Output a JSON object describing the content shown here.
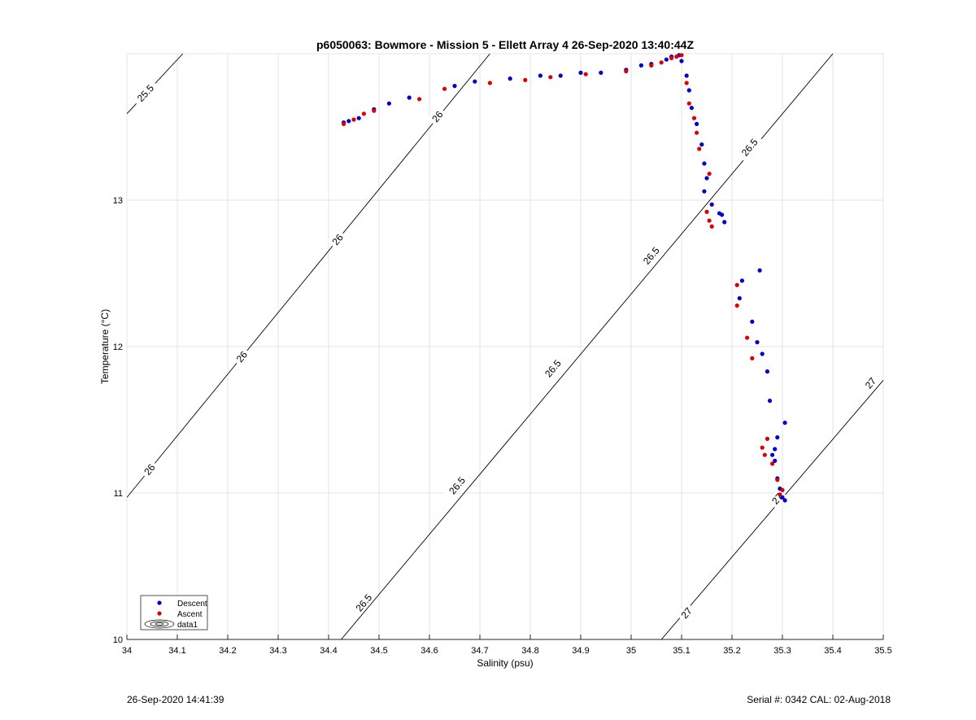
{
  "footer": {
    "left": "26-Sep-2020 14:41:39",
    "right": "Serial #: 0342  CAL: 02-Aug-2018"
  },
  "chart_data": {
    "type": "scatter",
    "title": "p6050063: Bowmore - Mission 5 - Ellett Array 4 26-Sep-2020 13:40:44Z",
    "xlabel": "Salinity (psu)",
    "ylabel": "Temperature (°C)",
    "xlim": [
      34,
      35.5
    ],
    "ylim": [
      10,
      14
    ],
    "xticks": [
      "34",
      "34.1",
      "34.2",
      "34.3",
      "34.4",
      "34.5",
      "34.6",
      "34.7",
      "34.8",
      "34.9",
      "35",
      "35.1",
      "35.2",
      "35.3",
      "35.4",
      "35.5"
    ],
    "yticks": [
      "10",
      "11",
      "12",
      "13"
    ],
    "grid": true,
    "legend": {
      "position": "bottom-left",
      "entries": [
        "Descent",
        "Ascent",
        "data1"
      ]
    },
    "colors": {
      "descent": "#0000cc",
      "ascent": "#dd0000",
      "contour": "#000000"
    },
    "density_contours": [
      {
        "level": "25.5",
        "line": [
          [
            34.0,
            13.59
          ],
          [
            34.111,
            14.0
          ]
        ],
        "labels": [
          {
            "text": "25.5",
            "x": 34.037,
            "y": 13.73
          }
        ]
      },
      {
        "level": "26",
        "line": [
          [
            34.0,
            10.97
          ],
          [
            34.72,
            14.0
          ]
        ],
        "labels": [
          {
            "text": "26",
            "x": 34.045,
            "y": 11.16
          },
          {
            "text": "26",
            "x": 34.228,
            "y": 11.93
          },
          {
            "text": "26",
            "x": 34.418,
            "y": 12.73
          },
          {
            "text": "26",
            "x": 34.616,
            "y": 13.57
          }
        ]
      },
      {
        "level": "26.5",
        "line": [
          [
            34.425,
            10.0
          ],
          [
            35.4,
            14.0
          ]
        ],
        "labels": [
          {
            "text": "26.5",
            "x": 34.47,
            "y": 10.25
          },
          {
            "text": "26.5",
            "x": 34.655,
            "y": 11.05
          },
          {
            "text": "26.5",
            "x": 34.845,
            "y": 11.85
          },
          {
            "text": "26.5",
            "x": 35.04,
            "y": 12.62
          },
          {
            "text": "26.5",
            "x": 35.235,
            "y": 13.36
          }
        ]
      },
      {
        "level": "27",
        "line": [
          [
            35.06,
            10.0
          ],
          [
            35.5,
            11.77
          ]
        ],
        "labels": [
          {
            "text": "27",
            "x": 35.11,
            "y": 10.18
          },
          {
            "text": "27",
            "x": 35.29,
            "y": 10.96
          },
          {
            "text": "27",
            "x": 35.475,
            "y": 11.75
          }
        ]
      }
    ],
    "series": [
      {
        "name": "Descent",
        "points": [
          [
            34.43,
            13.53
          ],
          [
            34.44,
            13.54
          ],
          [
            34.46,
            13.56
          ],
          [
            34.49,
            13.62
          ],
          [
            34.52,
            13.66
          ],
          [
            34.56,
            13.7
          ],
          [
            34.65,
            13.78
          ],
          [
            34.69,
            13.81
          ],
          [
            34.76,
            13.83
          ],
          [
            34.82,
            13.85
          ],
          [
            34.86,
            13.85
          ],
          [
            34.9,
            13.87
          ],
          [
            34.94,
            13.87
          ],
          [
            34.99,
            13.89
          ],
          [
            35.02,
            13.92
          ],
          [
            35.04,
            13.93
          ],
          [
            35.07,
            13.96
          ],
          [
            35.08,
            13.98
          ],
          [
            35.095,
            13.99
          ],
          [
            35.1,
            13.95
          ],
          [
            35.11,
            13.85
          ],
          [
            35.115,
            13.75
          ],
          [
            35.12,
            13.63
          ],
          [
            35.13,
            13.52
          ],
          [
            35.14,
            13.38
          ],
          [
            35.145,
            13.25
          ],
          [
            35.15,
            13.15
          ],
          [
            35.145,
            13.06
          ],
          [
            35.16,
            12.97
          ],
          [
            35.175,
            12.91
          ],
          [
            35.18,
            12.9
          ],
          [
            35.185,
            12.85
          ],
          [
            35.255,
            12.52
          ],
          [
            35.22,
            12.45
          ],
          [
            35.215,
            12.33
          ],
          [
            35.24,
            12.17
          ],
          [
            35.25,
            12.03
          ],
          [
            35.26,
            11.95
          ],
          [
            35.27,
            11.83
          ],
          [
            35.275,
            11.63
          ],
          [
            35.305,
            11.48
          ],
          [
            35.29,
            11.38
          ],
          [
            35.285,
            11.3
          ],
          [
            35.28,
            11.26
          ],
          [
            35.285,
            11.22
          ],
          [
            35.29,
            11.1
          ],
          [
            35.295,
            11.03
          ],
          [
            35.3,
            10.97
          ],
          [
            35.305,
            10.95
          ]
        ]
      },
      {
        "name": "Ascent",
        "points": [
          [
            34.43,
            13.52
          ],
          [
            34.45,
            13.55
          ],
          [
            34.47,
            13.59
          ],
          [
            34.49,
            13.61
          ],
          [
            34.58,
            13.69
          ],
          [
            34.63,
            13.76
          ],
          [
            34.72,
            13.8
          ],
          [
            34.79,
            13.82
          ],
          [
            34.84,
            13.84
          ],
          [
            34.91,
            13.86
          ],
          [
            34.99,
            13.88
          ],
          [
            35.04,
            13.92
          ],
          [
            35.06,
            13.94
          ],
          [
            35.08,
            13.97
          ],
          [
            35.09,
            13.98
          ],
          [
            35.1,
            13.99
          ],
          [
            35.11,
            13.8
          ],
          [
            35.115,
            13.66
          ],
          [
            35.125,
            13.56
          ],
          [
            35.13,
            13.46
          ],
          [
            35.135,
            13.35
          ],
          [
            35.155,
            13.18
          ],
          [
            35.15,
            12.92
          ],
          [
            35.155,
            12.86
          ],
          [
            35.16,
            12.82
          ],
          [
            35.21,
            12.42
          ],
          [
            35.21,
            12.28
          ],
          [
            35.23,
            12.06
          ],
          [
            35.24,
            11.92
          ],
          [
            35.26,
            11.31
          ],
          [
            35.27,
            11.37
          ],
          [
            35.265,
            11.26
          ],
          [
            35.28,
            11.2
          ],
          [
            35.29,
            11.09
          ],
          [
            35.3,
            11.02
          ],
          [
            35.295,
            10.99
          ]
        ]
      }
    ]
  }
}
